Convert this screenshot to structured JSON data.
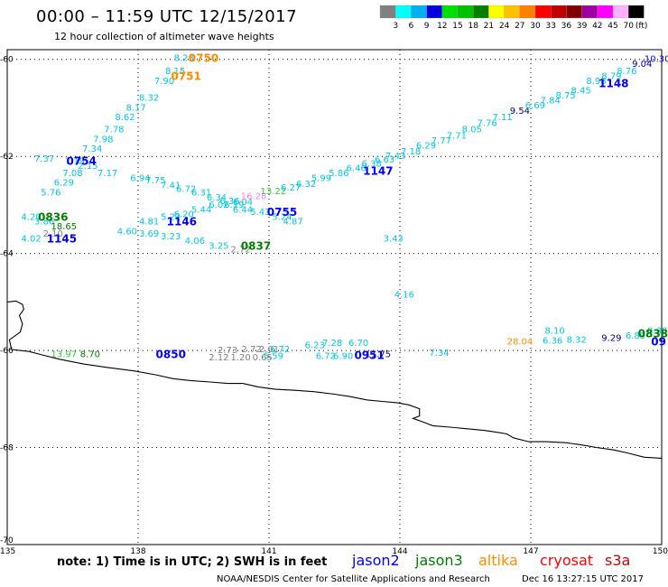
{
  "header": {
    "title": "00:00 – 11:59 UTC 12/15/2017",
    "subtitle": "12 hour collection of altimeter wave heights"
  },
  "legend": {
    "unit": "(ft)",
    "entries": [
      {
        "value": "3",
        "color": "#808080"
      },
      {
        "value": "6",
        "color": "#00ffff"
      },
      {
        "value": "9",
        "color": "#00b0f0"
      },
      {
        "value": "12",
        "color": "#0000e0"
      },
      {
        "value": "15",
        "color": "#00e000"
      },
      {
        "value": "18",
        "color": "#00c000"
      },
      {
        "value": "21",
        "color": "#008000"
      },
      {
        "value": "24",
        "color": "#ffff00"
      },
      {
        "value": "27",
        "color": "#ffc000"
      },
      {
        "value": "30",
        "color": "#ff8000"
      },
      {
        "value": "33",
        "color": "#ff0000"
      },
      {
        "value": "36",
        "color": "#c00000"
      },
      {
        "value": "39",
        "color": "#800000"
      },
      {
        "value": "42",
        "color": "#a000a0"
      },
      {
        "value": "45",
        "color": "#ff00ff"
      },
      {
        "value": "70",
        "color": "#ffb0ff"
      },
      {
        "value": "",
        "color": "#000000"
      }
    ]
  },
  "axes": {
    "lat_labels": [
      "-60",
      "-62",
      "-64",
      "-66",
      "-68",
      "-70"
    ],
    "lon_labels": [
      "135",
      "138",
      "141",
      "144",
      "147",
      "150"
    ]
  },
  "footer": {
    "note": "note: 1) Time is in UTC; 2) SWH is in feet",
    "satellites": [
      {
        "name": "jason2",
        "color": "#0000ff"
      },
      {
        "name": "jason3",
        "color": "#008000"
      },
      {
        "name": "altika",
        "color": "#ff8c00"
      },
      {
        "name": "cryosat",
        "color": "#ff0000"
      },
      {
        "name": "s3a",
        "color": "#cc0000"
      }
    ],
    "credit": "NOAA/NESDIS Center for Satellite Applications and Research",
    "timestamp": "Dec 16 13:27:15 UTC 2017"
  },
  "map_data": {
    "colors": {
      "grey": "#808080",
      "cyan": "#00c8e6",
      "blue": "#0000ff",
      "navy": "#00008b",
      "green": "#008000",
      "lgreen": "#33cc33",
      "orange": "#ff8c00",
      "pink": "#ff77ff"
    },
    "observations": [
      {
        "lon": 139.05,
        "lat": -59.98,
        "text": "8.23",
        "c": "cyan"
      },
      {
        "lon": 138.85,
        "lat": -60.25,
        "text": "8.15",
        "c": "cyan"
      },
      {
        "lon": 138.6,
        "lat": -60.45,
        "text": "7.90",
        "c": "cyan"
      },
      {
        "lon": 138.25,
        "lat": -60.8,
        "text": "8.32",
        "c": "cyan"
      },
      {
        "lon": 137.95,
        "lat": -61.0,
        "text": "8.17",
        "c": "cyan"
      },
      {
        "lon": 137.7,
        "lat": -61.2,
        "text": "8.62",
        "c": "cyan"
      },
      {
        "lon": 137.45,
        "lat": -61.45,
        "text": "7.78",
        "c": "cyan"
      },
      {
        "lon": 137.2,
        "lat": -61.65,
        "text": "7.98",
        "c": "cyan"
      },
      {
        "lon": 136.95,
        "lat": -61.85,
        "text": "7.34",
        "c": "cyan"
      },
      {
        "lon": 135.85,
        "lat": -62.05,
        "text": "7.37",
        "c": "cyan"
      },
      {
        "lon": 136.55,
        "lat": -62.1,
        "text": "7.19",
        "c": "cyan"
      },
      {
        "lon": 136.85,
        "lat": -62.2,
        "text": "2.15",
        "c": "cyan"
      },
      {
        "lon": 136.5,
        "lat": -62.35,
        "text": "7.08",
        "c": "cyan"
      },
      {
        "lon": 137.3,
        "lat": -62.35,
        "text": "7.17",
        "c": "cyan"
      },
      {
        "lon": 136.3,
        "lat": -62.55,
        "text": "6.29",
        "c": "cyan"
      },
      {
        "lon": 136.0,
        "lat": -62.75,
        "text": "5.76",
        "c": "cyan"
      },
      {
        "lon": 138.05,
        "lat": -62.45,
        "text": "6.94",
        "c": "cyan"
      },
      {
        "lon": 138.4,
        "lat": -62.5,
        "text": "7.75",
        "c": "cyan"
      },
      {
        "lon": 138.75,
        "lat": -62.6,
        "text": "7.41",
        "c": "cyan"
      },
      {
        "lon": 139.1,
        "lat": -62.68,
        "text": "6.72",
        "c": "cyan"
      },
      {
        "lon": 139.45,
        "lat": -62.75,
        "text": "6.31",
        "c": "cyan"
      },
      {
        "lon": 139.8,
        "lat": -62.85,
        "text": "6.34",
        "c": "cyan"
      },
      {
        "lon": 140.1,
        "lat": -62.93,
        "text": "6.36",
        "c": "cyan"
      },
      {
        "lon": 140.4,
        "lat": -62.95,
        "text": "6.04",
        "c": "cyan"
      },
      {
        "lon": 139.85,
        "lat": -63.0,
        "text": "6.02",
        "c": "cyan"
      },
      {
        "lon": 140.2,
        "lat": -63.0,
        "text": "6.19",
        "c": "cyan"
      },
      {
        "lon": 139.45,
        "lat": -63.1,
        "text": "5.44",
        "c": "cyan"
      },
      {
        "lon": 140.4,
        "lat": -63.1,
        "text": "6.44",
        "c": "cyan"
      },
      {
        "lon": 139.05,
        "lat": -63.2,
        "text": "6.20",
        "c": "cyan"
      },
      {
        "lon": 140.8,
        "lat": -63.15,
        "text": "5.43",
        "c": "cyan"
      },
      {
        "lon": 138.75,
        "lat": -63.25,
        "text": "5.22",
        "c": "cyan"
      },
      {
        "lon": 141.3,
        "lat": -63.25,
        "text": "5.24",
        "c": "cyan"
      },
      {
        "lon": 141.55,
        "lat": -63.35,
        "text": "4.87",
        "c": "cyan"
      },
      {
        "lon": 138.25,
        "lat": -63.35,
        "text": "4.81",
        "c": "cyan"
      },
      {
        "lon": 137.75,
        "lat": -63.55,
        "text": "4.60",
        "c": "cyan"
      },
      {
        "lon": 138.25,
        "lat": -63.6,
        "text": "3.69",
        "c": "cyan"
      },
      {
        "lon": 138.75,
        "lat": -63.65,
        "text": "3.23",
        "c": "cyan"
      },
      {
        "lon": 139.3,
        "lat": -63.75,
        "text": "4.06",
        "c": "cyan"
      },
      {
        "lon": 139.85,
        "lat": -63.85,
        "text": "3.25",
        "c": "cyan"
      },
      {
        "lon": 140.35,
        "lat": -63.92,
        "text": "2.72",
        "c": "grey"
      },
      {
        "lon": 135.55,
        "lat": -63.25,
        "text": "4.20",
        "c": "cyan"
      },
      {
        "lon": 135.85,
        "lat": -63.35,
        "text": "3.86",
        "c": "cyan"
      },
      {
        "lon": 136.3,
        "lat": -63.45,
        "text": "18.65",
        "c": "green"
      },
      {
        "lon": 136.05,
        "lat": -63.6,
        "text": "2.10",
        "c": "grey"
      },
      {
        "lon": 135.55,
        "lat": -63.7,
        "text": "4.02",
        "c": "cyan"
      },
      {
        "lon": 140.65,
        "lat": -62.82,
        "text": "16.28",
        "c": "pink"
      },
      {
        "lon": 141.1,
        "lat": -62.72,
        "text": "13.22",
        "c": "lgreen"
      },
      {
        "lon": 141.5,
        "lat": -62.65,
        "text": "6.27",
        "c": "cyan"
      },
      {
        "lon": 141.85,
        "lat": -62.57,
        "text": "6.32",
        "c": "cyan"
      },
      {
        "lon": 142.2,
        "lat": -62.45,
        "text": "5.99",
        "c": "cyan"
      },
      {
        "lon": 142.6,
        "lat": -62.35,
        "text": "5.86",
        "c": "cyan"
      },
      {
        "lon": 143.0,
        "lat": -62.25,
        "text": "6.46",
        "c": "cyan"
      },
      {
        "lon": 143.35,
        "lat": -62.15,
        "text": "6.38",
        "c": "cyan"
      },
      {
        "lon": 143.65,
        "lat": -62.07,
        "text": "6.63",
        "c": "cyan"
      },
      {
        "lon": 143.9,
        "lat": -62.0,
        "text": "7.43",
        "c": "cyan"
      },
      {
        "lon": 144.25,
        "lat": -61.9,
        "text": "7.18",
        "c": "cyan"
      },
      {
        "lon": 144.6,
        "lat": -61.78,
        "text": "6.29",
        "c": "cyan"
      },
      {
        "lon": 144.95,
        "lat": -61.68,
        "text": "7.77",
        "c": "cyan"
      },
      {
        "lon": 145.3,
        "lat": -61.58,
        "text": "7.71",
        "c": "cyan"
      },
      {
        "lon": 145.65,
        "lat": -61.45,
        "text": "8.05",
        "c": "cyan"
      },
      {
        "lon": 146.0,
        "lat": -61.32,
        "text": "7.76",
        "c": "cyan"
      },
      {
        "lon": 146.35,
        "lat": -61.2,
        "text": "7.11",
        "c": "cyan"
      },
      {
        "lon": 146.75,
        "lat": -61.07,
        "text": "9.54",
        "c": "navy"
      },
      {
        "lon": 147.1,
        "lat": -60.95,
        "text": "6.69",
        "c": "cyan"
      },
      {
        "lon": 147.45,
        "lat": -60.85,
        "text": "7.84",
        "c": "cyan"
      },
      {
        "lon": 147.8,
        "lat": -60.75,
        "text": "8.75",
        "c": "cyan"
      },
      {
        "lon": 148.15,
        "lat": -60.65,
        "text": "8.45",
        "c": "cyan"
      },
      {
        "lon": 148.5,
        "lat": -60.45,
        "text": "8.98",
        "c": "cyan"
      },
      {
        "lon": 148.85,
        "lat": -60.35,
        "text": "8.79",
        "c": "cyan"
      },
      {
        "lon": 149.2,
        "lat": -60.25,
        "text": "8.76",
        "c": "cyan"
      },
      {
        "lon": 149.55,
        "lat": -60.1,
        "text": "9.04",
        "c": "navy"
      },
      {
        "lon": 149.9,
        "lat": -60.0,
        "text": "10.30",
        "c": "blue"
      },
      {
        "lon": 143.85,
        "lat": -63.7,
        "text": "3.43",
        "c": "cyan"
      },
      {
        "lon": 144.1,
        "lat": -64.85,
        "text": "4.16",
        "c": "cyan"
      },
      {
        "lon": 136.3,
        "lat": -66.08,
        "text": "13.97",
        "c": "lgreen"
      },
      {
        "lon": 136.9,
        "lat": -66.08,
        "text": "8.70",
        "c": "green"
      },
      {
        "lon": 140.05,
        "lat": -66.0,
        "text": "2.73",
        "c": "grey"
      },
      {
        "lon": 140.6,
        "lat": -65.98,
        "text": "2.72",
        "c": "grey"
      },
      {
        "lon": 141.0,
        "lat": -65.98,
        "text": "2.01",
        "c": "grey"
      },
      {
        "lon": 139.85,
        "lat": -66.15,
        "text": "2.12",
        "c": "grey"
      },
      {
        "lon": 140.35,
        "lat": -66.15,
        "text": "1.20",
        "c": "grey"
      },
      {
        "lon": 140.85,
        "lat": -66.15,
        "text": "0.65",
        "c": "grey"
      },
      {
        "lon": 141.25,
        "lat": -65.98,
        "text": "6.72",
        "c": "cyan"
      },
      {
        "lon": 141.1,
        "lat": -66.12,
        "text": "5.59",
        "c": "cyan"
      },
      {
        "lon": 142.05,
        "lat": -65.9,
        "text": "6.23",
        "c": "cyan"
      },
      {
        "lon": 142.45,
        "lat": -65.85,
        "text": "7.28",
        "c": "cyan"
      },
      {
        "lon": 143.05,
        "lat": -65.85,
        "text": "6.70",
        "c": "cyan"
      },
      {
        "lon": 142.3,
        "lat": -66.12,
        "text": "6.72",
        "c": "cyan"
      },
      {
        "lon": 142.7,
        "lat": -66.12,
        "text": "6.90",
        "c": "cyan"
      },
      {
        "lon": 143.5,
        "lat": -66.08,
        "text": "11.75",
        "c": "navy"
      },
      {
        "lon": 144.9,
        "lat": -66.05,
        "text": "7.34",
        "c": "cyan"
      },
      {
        "lon": 147.55,
        "lat": -65.6,
        "text": "8.10",
        "c": "cyan"
      },
      {
        "lon": 149.9,
        "lat": -65.6,
        "text": "8.38",
        "c": "cyan"
      },
      {
        "lon": 147.5,
        "lat": -65.8,
        "text": "6.36",
        "c": "cyan"
      },
      {
        "lon": 148.05,
        "lat": -65.78,
        "text": "8.32",
        "c": "cyan"
      },
      {
        "lon": 148.85,
        "lat": -65.75,
        "text": "9.29",
        "c": "navy"
      },
      {
        "lon": 149.4,
        "lat": -65.7,
        "text": "6.89",
        "c": "cyan"
      },
      {
        "lon": 146.75,
        "lat": -65.82,
        "text": "28.04",
        "c": "orange"
      }
    ],
    "times": [
      {
        "lon": 139.5,
        "lat": -59.98,
        "text": "0750",
        "c": "orange"
      },
      {
        "lon": 139.1,
        "lat": -60.35,
        "text": "0751",
        "c": "orange"
      },
      {
        "lon": 136.7,
        "lat": -62.1,
        "text": "0754",
        "c": "blue"
      },
      {
        "lon": 136.05,
        "lat": -63.25,
        "text": "0836",
        "c": "green"
      },
      {
        "lon": 139.0,
        "lat": -63.35,
        "text": "1146",
        "c": "blue"
      },
      {
        "lon": 136.25,
        "lat": -63.7,
        "text": "1145",
        "c": "blue"
      },
      {
        "lon": 141.3,
        "lat": -63.15,
        "text": "0755",
        "c": "blue"
      },
      {
        "lon": 140.7,
        "lat": -63.85,
        "text": "0837",
        "c": "green"
      },
      {
        "lon": 143.5,
        "lat": -62.3,
        "text": "1147",
        "c": "blue"
      },
      {
        "lon": 148.9,
        "lat": -60.5,
        "text": "1148",
        "c": "blue"
      },
      {
        "lon": 138.75,
        "lat": -66.08,
        "text": "0850",
        "c": "blue"
      },
      {
        "lon": 143.3,
        "lat": -66.1,
        "text": "0951",
        "c": "blue"
      },
      {
        "lon": 149.8,
        "lat": -65.65,
        "text": "0838",
        "c": "green"
      },
      {
        "lon": 150.15,
        "lat": -65.82,
        "text": "09",
        "c": "blue"
      }
    ],
    "coastline": [
      [
        135,
        -65.0
      ],
      [
        135.2,
        -64.98
      ],
      [
        135.35,
        -65.05
      ],
      [
        135.38,
        -65.15
      ],
      [
        135.28,
        -65.28
      ],
      [
        135.35,
        -65.45
      ],
      [
        135.3,
        -65.62
      ],
      [
        135.05,
        -65.78
      ],
      [
        135.1,
        -65.98
      ],
      [
        135.5,
        -66.02
      ],
      [
        135.75,
        -66.08
      ],
      [
        136.2,
        -66.18
      ],
      [
        136.75,
        -66.28
      ],
      [
        137.3,
        -66.35
      ],
      [
        137.9,
        -66.42
      ],
      [
        138.4,
        -66.5
      ],
      [
        138.8,
        -66.58
      ],
      [
        139.2,
        -66.62
      ],
      [
        139.65,
        -66.65
      ],
      [
        140.05,
        -66.68
      ],
      [
        140.4,
        -66.68
      ],
      [
        140.75,
        -66.75
      ],
      [
        141.15,
        -66.8
      ],
      [
        141.6,
        -66.82
      ],
      [
        142.05,
        -66.85
      ],
      [
        142.5,
        -66.9
      ],
      [
        142.85,
        -66.95
      ],
      [
        143.25,
        -67.02
      ],
      [
        143.6,
        -67.05
      ],
      [
        143.95,
        -67.08
      ],
      [
        144.2,
        -67.12
      ],
      [
        144.45,
        -67.2
      ],
      [
        144.45,
        -67.35
      ],
      [
        144.3,
        -67.4
      ],
      [
        144.55,
        -67.48
      ],
      [
        144.75,
        -67.55
      ],
      [
        145.15,
        -67.58
      ],
      [
        145.6,
        -67.62
      ],
      [
        145.95,
        -67.65
      ],
      [
        146.2,
        -67.68
      ],
      [
        146.45,
        -67.72
      ],
      [
        146.6,
        -67.8
      ],
      [
        146.95,
        -67.88
      ],
      [
        147.35,
        -67.88
      ],
      [
        147.8,
        -67.9
      ],
      [
        148.2,
        -67.95
      ],
      [
        148.5,
        -68.0
      ],
      [
        148.9,
        -68.05
      ],
      [
        149.25,
        -68.12
      ],
      [
        149.6,
        -68.2
      ],
      [
        150,
        -68.22
      ]
    ]
  }
}
